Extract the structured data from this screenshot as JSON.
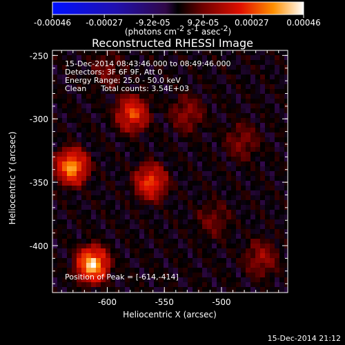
{
  "chart_data": {
    "type": "heatmap",
    "title": "Reconstructed RHESSI Image",
    "xlabel": "Heliocentric X (arcsec)",
    "ylabel": "Heliocentric Y (arcsec)",
    "xlim": [
      -648,
      -442
    ],
    "ylim": [
      -437,
      -246
    ],
    "x_ticks": [
      "-600",
      "-550",
      "-500"
    ],
    "x_tick_values": [
      -600,
      -550,
      -500
    ],
    "y_ticks": [
      "-250",
      "-300",
      "-350",
      "-400"
    ],
    "y_tick_values": [
      -250,
      -300,
      -350,
      -400
    ],
    "colorbar": {
      "ticks": [
        "-0.00046",
        "-0.00027",
        "-9.2e-05",
        "9.2e-05",
        "0.00027",
        "0.00046"
      ],
      "tick_values": [
        -0.00046,
        -0.00027,
        -9.2e-05,
        9.2e-05,
        0.00027,
        0.00046
      ],
      "unit_label": "(photons cm",
      "unit_sup1": "-2",
      "unit_mid1": " s",
      "unit_sup2": "-1",
      "unit_mid2": " asec",
      "unit_sup3": "-2",
      "unit_end": ")"
    },
    "annotations": [
      "15-Dec-2014 08:43:46.000 to 08:49:46.000",
      "Detectors: 3F 6F 9F, Att 0",
      "Energy Range: 25.0 - 50.0 keV",
      "Clean      Total counts: 3.54E+03"
    ],
    "peak_label": "Position of Peak = [-614,-414]",
    "sources": [
      {
        "x": -613,
        "y": -415,
        "value": 0.00046
      },
      {
        "x": -631,
        "y": -338,
        "value": 0.0004
      },
      {
        "x": -578,
        "y": -296,
        "value": 0.0003
      },
      {
        "x": -562,
        "y": -350,
        "value": 0.0003
      },
      {
        "x": -530,
        "y": -296,
        "value": 0.00014
      },
      {
        "x": -465,
        "y": -410,
        "value": 0.00015
      },
      {
        "x": -507,
        "y": -380,
        "value": 0.0001
      },
      {
        "x": -482,
        "y": -318,
        "value": 0.00012
      },
      {
        "x": -600,
        "y": -262,
        "value": 0.0001
      }
    ]
  },
  "footer_date": "15-Dec-2014 21:12"
}
